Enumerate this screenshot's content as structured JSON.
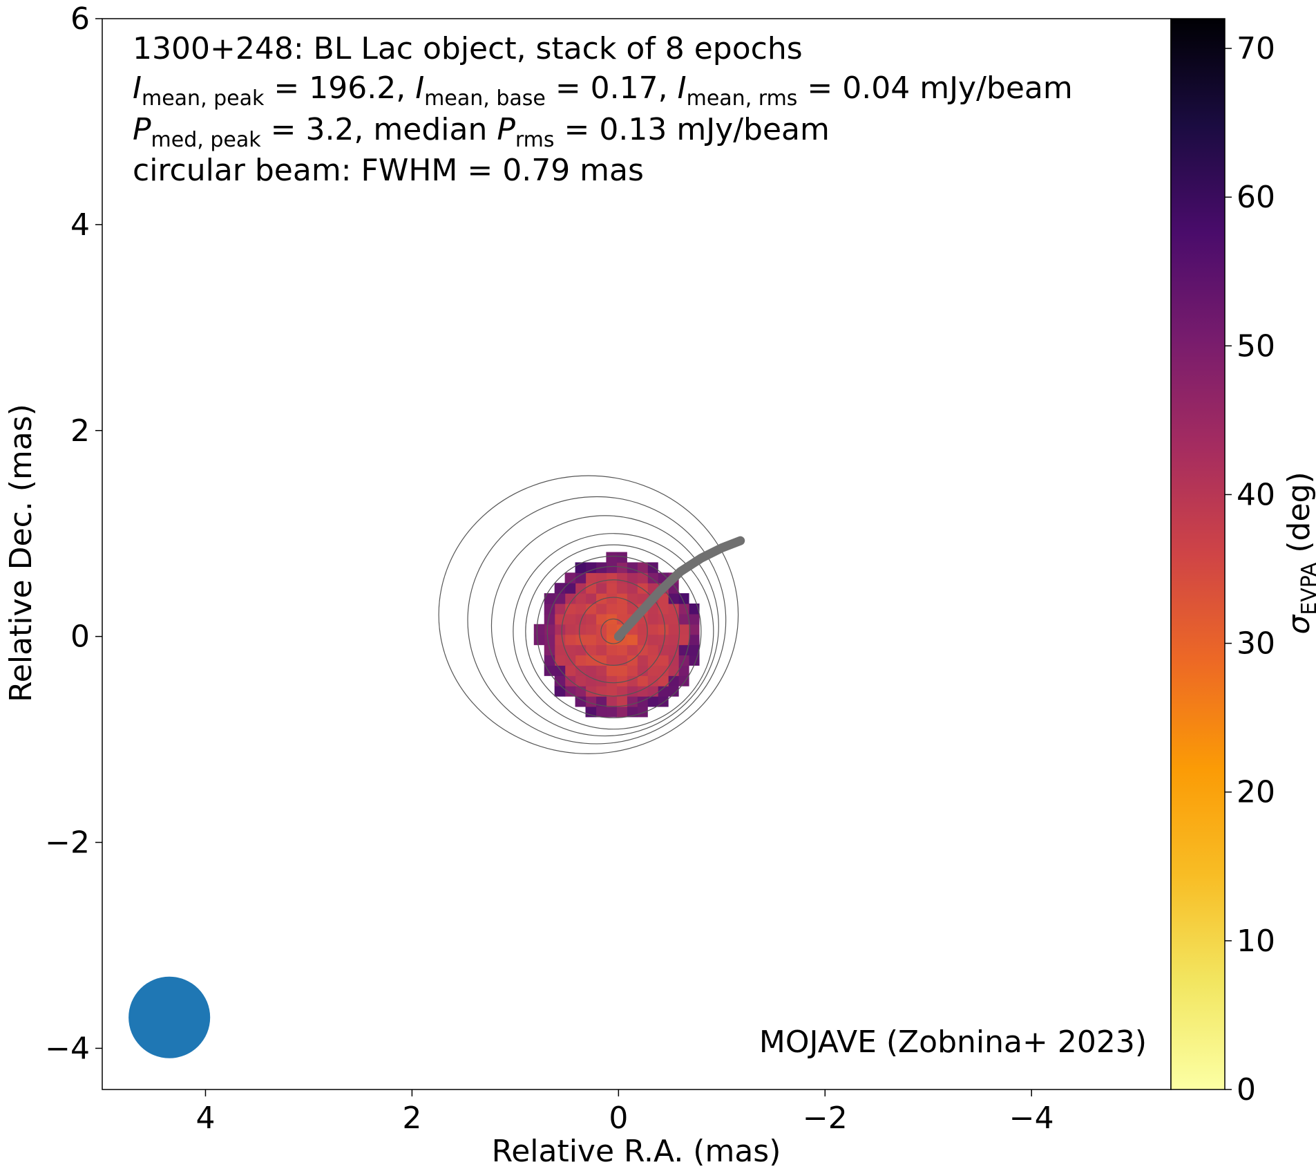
{
  "chart_data": {
    "type": "heatmap",
    "xlabel": "Relative R.A. (mas)",
    "ylabel": "Relative Dec. (mas)",
    "xlim": [
      5.0,
      -5.35
    ],
    "ylim": [
      -4.4,
      6.0
    ],
    "x_ticks": [
      4,
      2,
      0,
      -2,
      -4
    ],
    "x_tick_labels": [
      "4",
      "2",
      "0",
      "−2",
      "−4"
    ],
    "y_ticks": [
      -4,
      -2,
      0,
      2,
      4,
      6
    ],
    "y_tick_labels": [
      "−4",
      "−2",
      "0",
      "2",
      "4",
      "6"
    ],
    "annotation": {
      "line1": "1300+248: BL Lac object, stack of 8 epochs",
      "line2": {
        "i_symbol": "I",
        "sub_peak": "mean, peak",
        "peak_text": " = 196.2, ",
        "sub_base": "mean, base",
        "base_text": " = 0.17, ",
        "sub_rms": "mean, rms",
        "rms_text": " = 0.04 mJy/beam"
      },
      "line3": {
        "p_symbol": "P",
        "sub_med_peak": "med, peak",
        "med_peak_text": " = 3.2, median ",
        "sub_rms": "rms",
        "rms_text": " = 0.13 mJy/beam"
      },
      "line4": "circular beam: FWHM = 0.79 mas"
    },
    "credit": "MOJAVE (Zobnina+ 2023)",
    "colorbar": {
      "label_symbol": "σ",
      "label_sub": "EVPA",
      "label_unit": " (deg)",
      "range": [
        0,
        72
      ],
      "ticks": [
        0,
        10,
        20,
        30,
        40,
        50,
        60,
        70
      ],
      "tick_labels": [
        "0",
        "10",
        "20",
        "30",
        "40",
        "50",
        "60",
        "70"
      ],
      "colormap": "inferno_r"
    },
    "beam": {
      "center": [
        4.35,
        -3.7
      ],
      "fwhm_mas": 0.79,
      "color": "#1f77b4"
    },
    "ridgeline": {
      "color": "#707070",
      "points": [
        [
          0,
          0
        ],
        [
          -0.2,
          0.22
        ],
        [
          -0.4,
          0.44
        ],
        [
          -0.6,
          0.63
        ],
        [
          -0.8,
          0.76
        ],
        [
          -1.0,
          0.86
        ],
        [
          -1.18,
          0.93
        ]
      ]
    },
    "contours": {
      "color": "#555555",
      "center": [
        0.05,
        0.05
      ],
      "levels": [
        {
          "rx": 0.12,
          "ry": 0.12
        },
        {
          "rx": 0.33,
          "ry": 0.33
        },
        {
          "rx": 0.5,
          "ry": 0.5
        },
        {
          "rx": 0.64,
          "ry": 0.63
        },
        {
          "rx": 0.74,
          "ry": 0.73
        },
        {
          "rx": 0.85,
          "ry": 0.84
        },
        {
          "rx": 0.97,
          "ry": 0.95
        },
        {
          "rx": 1.1,
          "ry": 1.07
        },
        {
          "rx": 1.25,
          "ry": 1.2
        },
        {
          "rx": 1.45,
          "ry": 1.35
        }
      ]
    },
    "heatmap": {
      "pixel_size_mas": 0.1,
      "center": [
        0.0,
        0.0
      ],
      "radius_mas": 0.78,
      "value_range": [
        30,
        58
      ],
      "typical_value": 42
    }
  }
}
